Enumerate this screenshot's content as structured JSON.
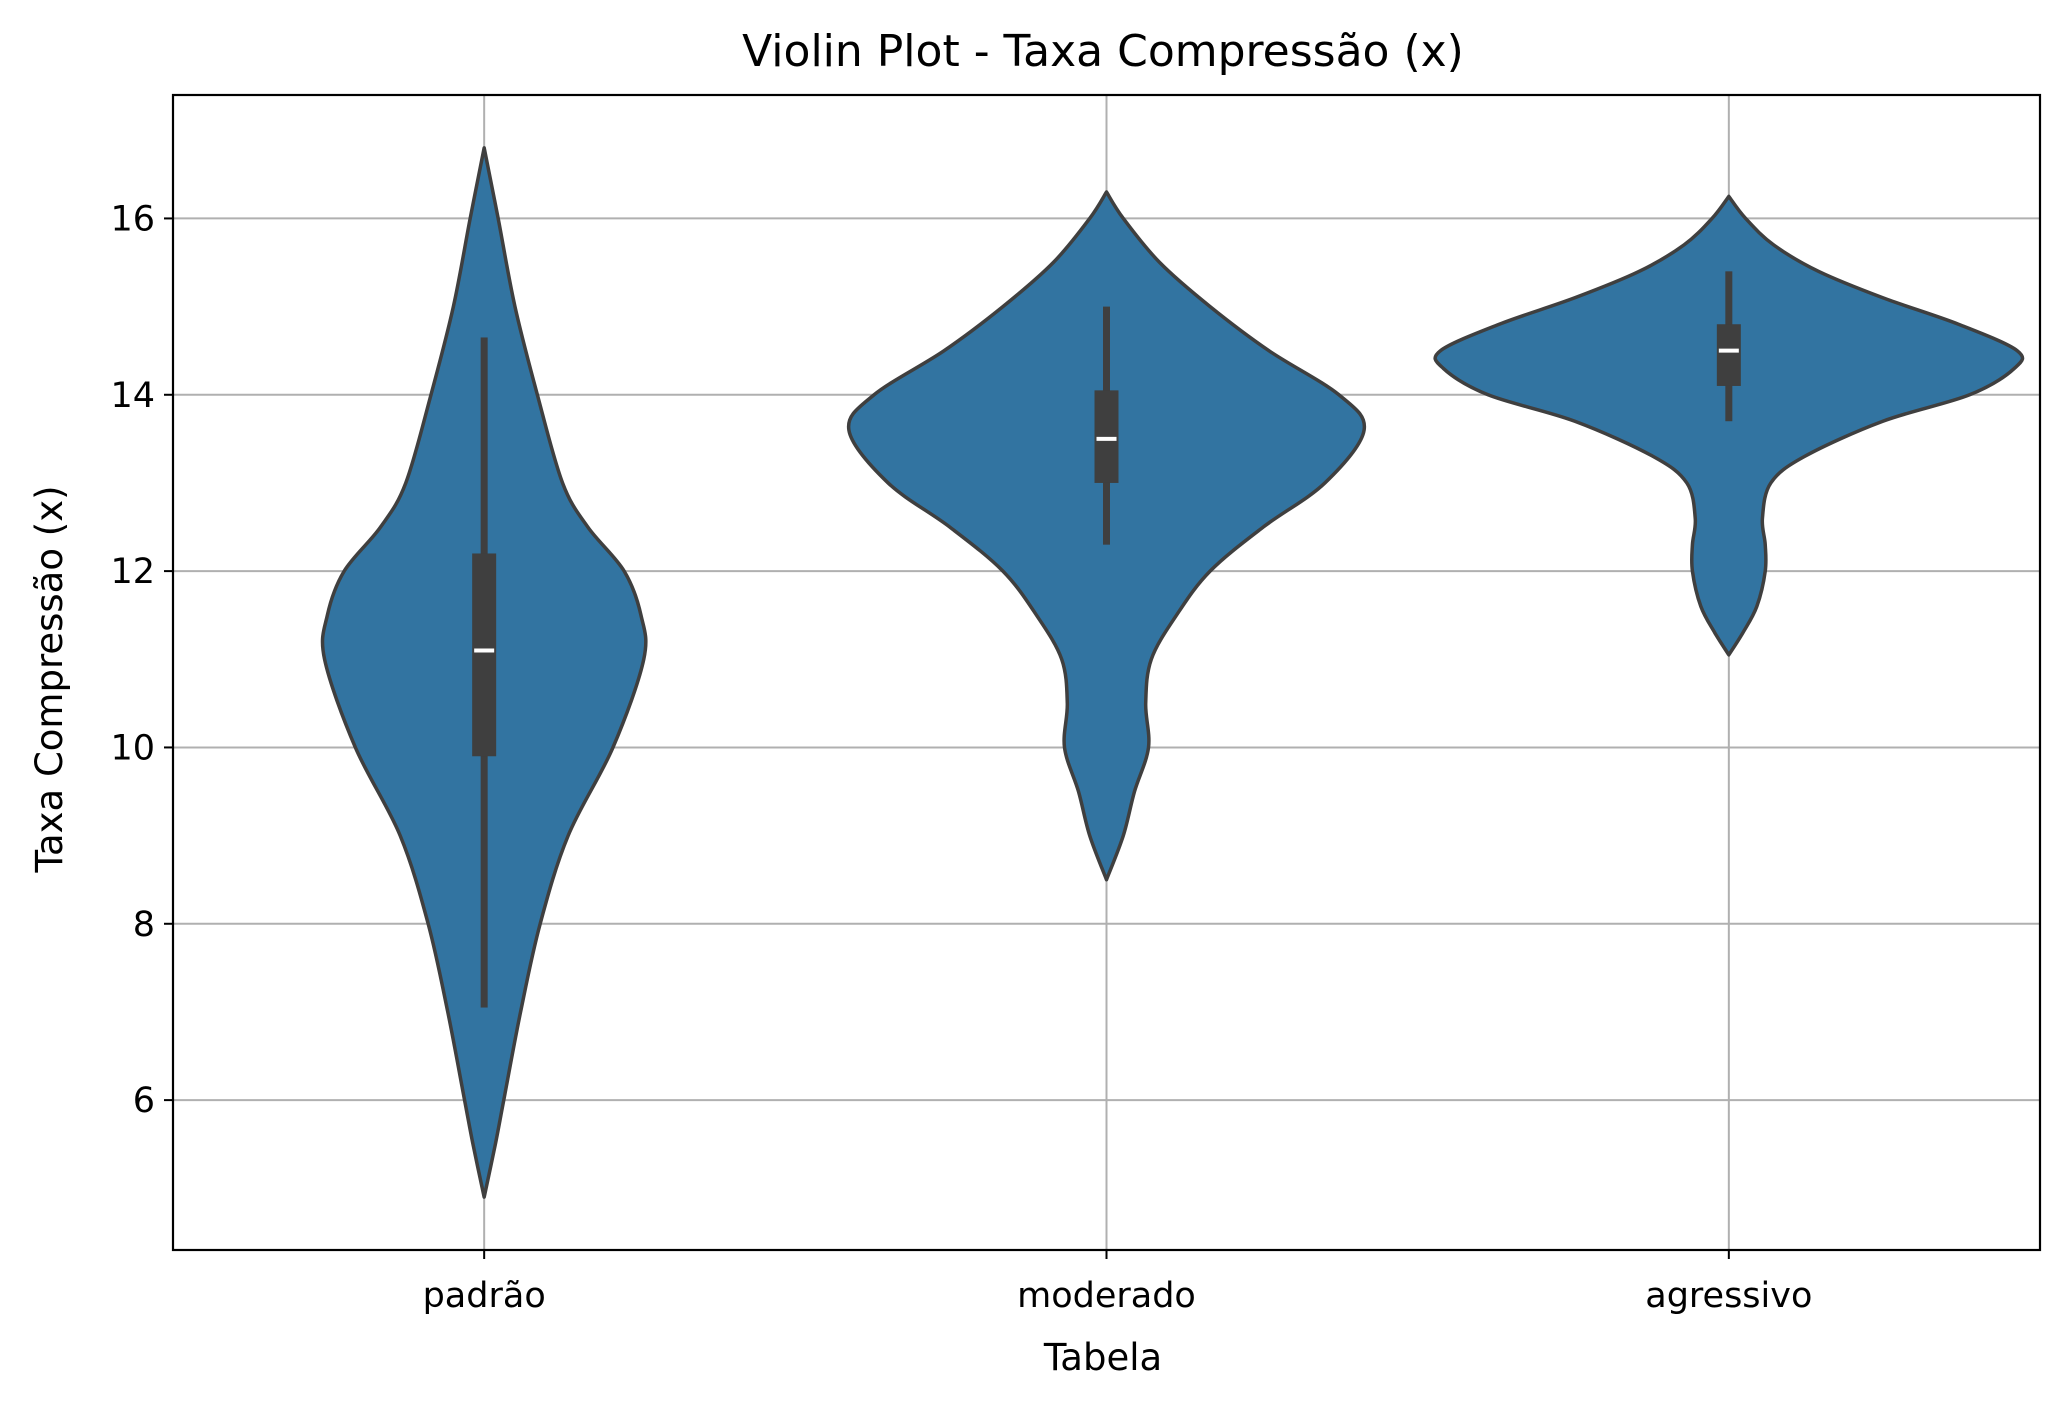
{
  "chart_data": {
    "type": "violin",
    "title": "Violin Plot - Taxa Compressão (x)",
    "xlabel": "Tabela",
    "ylabel": "Taxa Compressão (x)",
    "categories": [
      "padrão",
      "moderado",
      "agressivo"
    ],
    "ylim": [
      4.3,
      17.4
    ],
    "yticks": [
      6,
      8,
      10,
      12,
      14,
      16
    ],
    "grid": true,
    "colors": {
      "violin_fill": "#3274a1",
      "violin_edge": "#3f3f3f",
      "box": "#3f3f3f",
      "median": "#ffffff",
      "grid": "#b0b0b0",
      "axes": "#000000"
    },
    "violins": [
      {
        "category": "padrão",
        "min": 7.05,
        "q1": 9.9,
        "median": 11.1,
        "q3": 12.2,
        "max": 14.65,
        "range": [
          4.9,
          16.8
        ],
        "density": [
          [
            4.9,
            0.0
          ],
          [
            5.5,
            0.04
          ],
          [
            6.0,
            0.07
          ],
          [
            7.0,
            0.13
          ],
          [
            8.0,
            0.2
          ],
          [
            9.0,
            0.3
          ],
          [
            10.0,
            0.46
          ],
          [
            11.0,
            0.57
          ],
          [
            11.5,
            0.56
          ],
          [
            12.0,
            0.5
          ],
          [
            12.5,
            0.37
          ],
          [
            13.0,
            0.28
          ],
          [
            14.0,
            0.19
          ],
          [
            15.0,
            0.11
          ],
          [
            16.0,
            0.05
          ],
          [
            16.8,
            0.0
          ]
        ]
      },
      {
        "category": "moderado",
        "min": 12.3,
        "q1": 13.0,
        "median": 13.5,
        "q3": 14.05,
        "max": 15.0,
        "range": [
          8.5,
          16.3
        ],
        "density": [
          [
            8.5,
            0.0
          ],
          [
            9.0,
            0.06
          ],
          [
            9.5,
            0.1
          ],
          [
            10.0,
            0.15
          ],
          [
            10.5,
            0.14
          ],
          [
            11.0,
            0.16
          ],
          [
            11.5,
            0.25
          ],
          [
            12.0,
            0.37
          ],
          [
            12.5,
            0.56
          ],
          [
            13.0,
            0.78
          ],
          [
            13.6,
            0.92
          ],
          [
            14.0,
            0.83
          ],
          [
            14.5,
            0.58
          ],
          [
            15.0,
            0.37
          ],
          [
            15.5,
            0.19
          ],
          [
            16.0,
            0.06
          ],
          [
            16.3,
            0.0
          ]
        ]
      },
      {
        "category": "agressivo",
        "min": 13.7,
        "q1": 14.1,
        "median": 14.5,
        "q3": 14.8,
        "max": 15.4,
        "range": [
          11.05,
          16.25
        ],
        "density": [
          [
            11.05,
            0.0
          ],
          [
            11.3,
            0.05
          ],
          [
            11.6,
            0.1
          ],
          [
            12.0,
            0.13
          ],
          [
            12.3,
            0.13
          ],
          [
            12.6,
            0.12
          ],
          [
            13.0,
            0.15
          ],
          [
            13.3,
            0.27
          ],
          [
            13.7,
            0.55
          ],
          [
            14.0,
            0.86
          ],
          [
            14.3,
            1.02
          ],
          [
            14.5,
            1.03
          ],
          [
            14.8,
            0.82
          ],
          [
            15.1,
            0.55
          ],
          [
            15.4,
            0.32
          ],
          [
            15.7,
            0.16
          ],
          [
            16.0,
            0.06
          ],
          [
            16.25,
            0.0
          ]
        ]
      }
    ]
  }
}
